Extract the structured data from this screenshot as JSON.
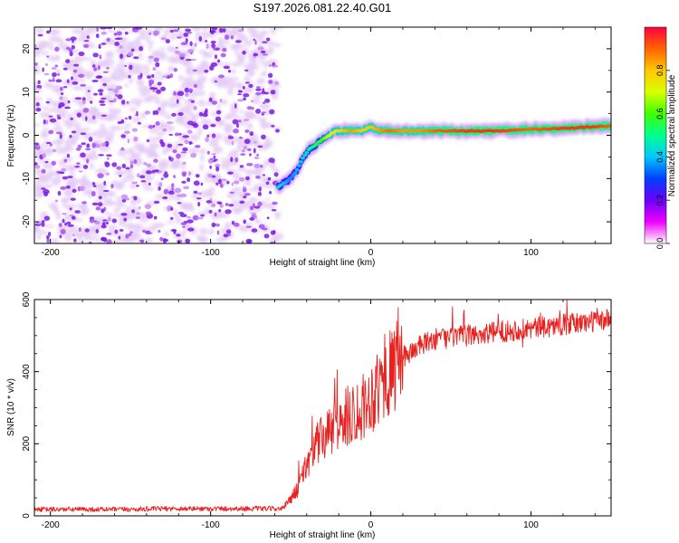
{
  "title": "S197.2026.081.22.40.G01",
  "colors": {
    "snr_line": "#e8201e",
    "axis": "#000000",
    "noise_purple": "#7b1ae6",
    "noise_light": "#e3c9f5"
  },
  "chart_data": [
    {
      "type": "heatmap",
      "xlabel": "Height of straight line (km)",
      "ylabel": "Frequency (Hz)",
      "xlim": [
        -210,
        150
      ],
      "ylim": [
        -25,
        25
      ],
      "x_ticks": [
        -200,
        -100,
        0,
        100
      ],
      "x_tick_labels": [
        "-200",
        "-100",
        "0",
        "100"
      ],
      "y_ticks": [
        20,
        10,
        0,
        -10,
        -20
      ],
      "y_tick_labels": [
        "20",
        "10",
        "0",
        "-10",
        "-20"
      ],
      "noise_region": {
        "x_start": -210,
        "x_end": -58
      },
      "signal_track": {
        "x": [
          -58,
          -54,
          -50,
          -46,
          -42,
          -38,
          -34,
          -30,
          -26,
          -22,
          -18,
          -12,
          -6,
          0,
          6,
          12,
          20,
          30,
          40,
          60,
          80,
          100,
          120,
          140,
          150
        ],
        "freq": [
          -12,
          -11,
          -10,
          -8,
          -5,
          -3,
          -2,
          -1,
          0,
          1,
          1,
          1,
          1,
          2,
          1,
          1,
          1,
          1,
          1,
          1,
          1,
          1.3,
          1.6,
          2,
          2.2
        ],
        "amplitude": [
          0.45,
          0.4,
          0.35,
          0.4,
          0.45,
          0.5,
          0.55,
          0.6,
          0.7,
          0.75,
          0.8,
          0.85,
          0.8,
          0.8,
          0.85,
          0.9,
          0.85,
          0.85,
          0.9,
          0.95,
          0.95,
          0.9,
          0.95,
          0.95,
          0.9
        ]
      },
      "colorbar": {
        "label": "Normalized spectral amplitude",
        "range": [
          0,
          1
        ],
        "ticks": [
          0.0,
          0.2,
          0.4,
          0.6,
          0.8
        ],
        "tick_labels": [
          "0.0",
          "0.2",
          "0.4",
          "0.6",
          "0.8"
        ],
        "colormap": [
          "#ffffff",
          "#ee00ff",
          "#6a00ff",
          "#0040ff",
          "#00c8ff",
          "#00ff90",
          "#40ff00",
          "#d8ff00",
          "#ffc800",
          "#ff6400",
          "#ff0040"
        ]
      }
    },
    {
      "type": "line",
      "xlabel": "Height of straight line (km)",
      "ylabel": "SNR (10 * v/v)",
      "xlim": [
        -210,
        150
      ],
      "ylim": [
        0,
        600
      ],
      "x_ticks": [
        -200,
        -100,
        0,
        100
      ],
      "x_tick_labels": [
        "-200",
        "-100",
        "0",
        "100"
      ],
      "y_ticks": [
        0,
        200,
        400,
        600
      ],
      "y_tick_labels": [
        "0",
        "200",
        "400",
        "600"
      ],
      "series": [
        {
          "name": "SNR",
          "x": [
            -210,
            -190,
            -170,
            -150,
            -130,
            -110,
            -90,
            -70,
            -55,
            -45,
            -40,
            -35,
            -30,
            -25,
            -20,
            -15,
            -10,
            -5,
            0,
            5,
            10,
            15,
            20,
            30,
            40,
            60,
            80,
            100,
            120,
            140,
            150
          ],
          "y": [
            18,
            18,
            18,
            18,
            20,
            20,
            20,
            20,
            20,
            80,
            150,
            200,
            220,
            240,
            260,
            280,
            300,
            310,
            340,
            370,
            400,
            420,
            440,
            470,
            490,
            500,
            510,
            520,
            530,
            540,
            545
          ]
        }
      ]
    }
  ]
}
